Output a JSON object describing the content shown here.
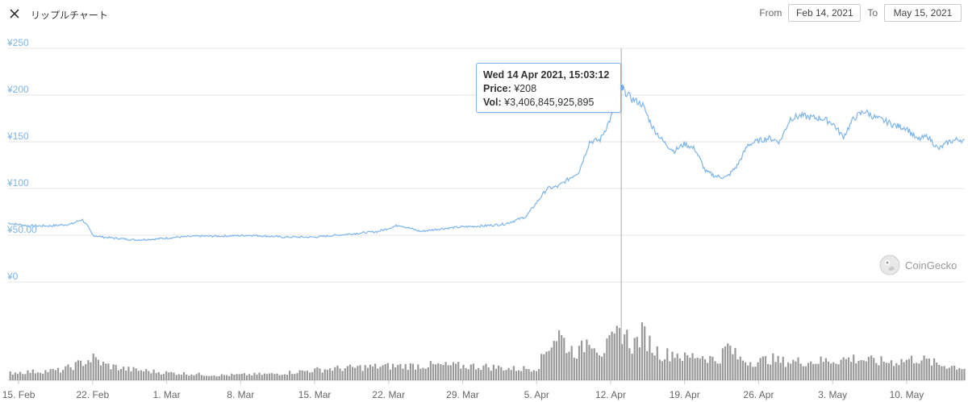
{
  "header": {
    "title": "リップルチャート",
    "from_label": "From",
    "from_value": "Feb 14, 2021",
    "to_label": "To",
    "to_value": "May 15, 2021"
  },
  "tooltip": {
    "date": "Wed 14 Apr 2021, 15:03:12",
    "price_label": "Price:",
    "price_value": "¥208",
    "vol_label": "Vol:",
    "vol_value": "¥3,406,845,925,895"
  },
  "credit": "CoinGecko",
  "chart_data": {
    "type": "line",
    "series_color": "#7cb5ec",
    "volume_color": "#999999",
    "y_ticks": [
      "¥0",
      "¥50.00",
      "¥100",
      "¥150",
      "¥200",
      "¥250"
    ],
    "y_tick_values": [
      0,
      50,
      100,
      150,
      200,
      250
    ],
    "ylim": [
      0,
      250
    ],
    "x_ticks": [
      "15. Feb",
      "22. Feb",
      "1. Mar",
      "8. Mar",
      "15. Mar",
      "22. Mar",
      "29. Mar",
      "5. Apr",
      "12. Apr",
      "19. Apr",
      "26. Apr",
      "3. May",
      "10. May"
    ],
    "x_tick_days": [
      1,
      8,
      15,
      22,
      29,
      36,
      43,
      50,
      57,
      64,
      71,
      78,
      85
    ],
    "x_days_range": [
      0,
      90.5
    ],
    "price": {
      "day": [
        0,
        2,
        4,
        6,
        7,
        7.5,
        8,
        9,
        10,
        12,
        14,
        16,
        18,
        20,
        23,
        26,
        29,
        32,
        35,
        37,
        39,
        41,
        43,
        45,
        47,
        49,
        51,
        52,
        53,
        54,
        55,
        56,
        57,
        58,
        59,
        60,
        61,
        62,
        63,
        64,
        65,
        66,
        67,
        68,
        69,
        70,
        71,
        72,
        73,
        74,
        75,
        76,
        77,
        78,
        79,
        80,
        81,
        82,
        83,
        84,
        85,
        86,
        87,
        88,
        89,
        90,
        90.5
      ],
      "value": [
        63,
        60,
        60,
        62,
        67,
        60,
        50,
        48,
        47,
        45,
        46,
        48,
        49,
        49,
        50,
        48,
        48,
        51,
        54,
        61,
        54,
        57,
        59,
        60,
        62,
        70,
        100,
        102,
        110,
        118,
        150,
        152,
        175,
        208,
        196,
        190,
        165,
        150,
        140,
        148,
        142,
        118,
        113,
        112,
        125,
        147,
        151,
        154,
        150,
        175,
        178,
        176,
        175,
        170,
        155,
        175,
        183,
        176,
        172,
        167,
        165,
        152,
        156,
        142,
        150,
        153,
        150
      ]
    },
    "volume": {
      "day": [
        0,
        5,
        8,
        9,
        11,
        15,
        20,
        25,
        30,
        35,
        40,
        45,
        48,
        50,
        51,
        52,
        53,
        54,
        55,
        56,
        57,
        58,
        59,
        60,
        61,
        62,
        63,
        64,
        65,
        66,
        67,
        68,
        69,
        70,
        71,
        72,
        73,
        74,
        76,
        78,
        80,
        82,
        84,
        86,
        88,
        90.5
      ],
      "value": [
        0.12,
        0.16,
        0.35,
        0.25,
        0.18,
        0.12,
        0.08,
        0.1,
        0.18,
        0.22,
        0.24,
        0.22,
        0.18,
        0.2,
        0.55,
        0.75,
        0.5,
        0.45,
        0.72,
        0.45,
        0.6,
        0.8,
        0.55,
        0.75,
        0.5,
        0.4,
        0.45,
        0.35,
        0.4,
        0.38,
        0.3,
        0.55,
        0.35,
        0.3,
        0.3,
        0.35,
        0.3,
        0.3,
        0.3,
        0.32,
        0.35,
        0.3,
        0.3,
        0.35,
        0.25,
        0.2
      ]
    },
    "highlight_day": 58
  }
}
